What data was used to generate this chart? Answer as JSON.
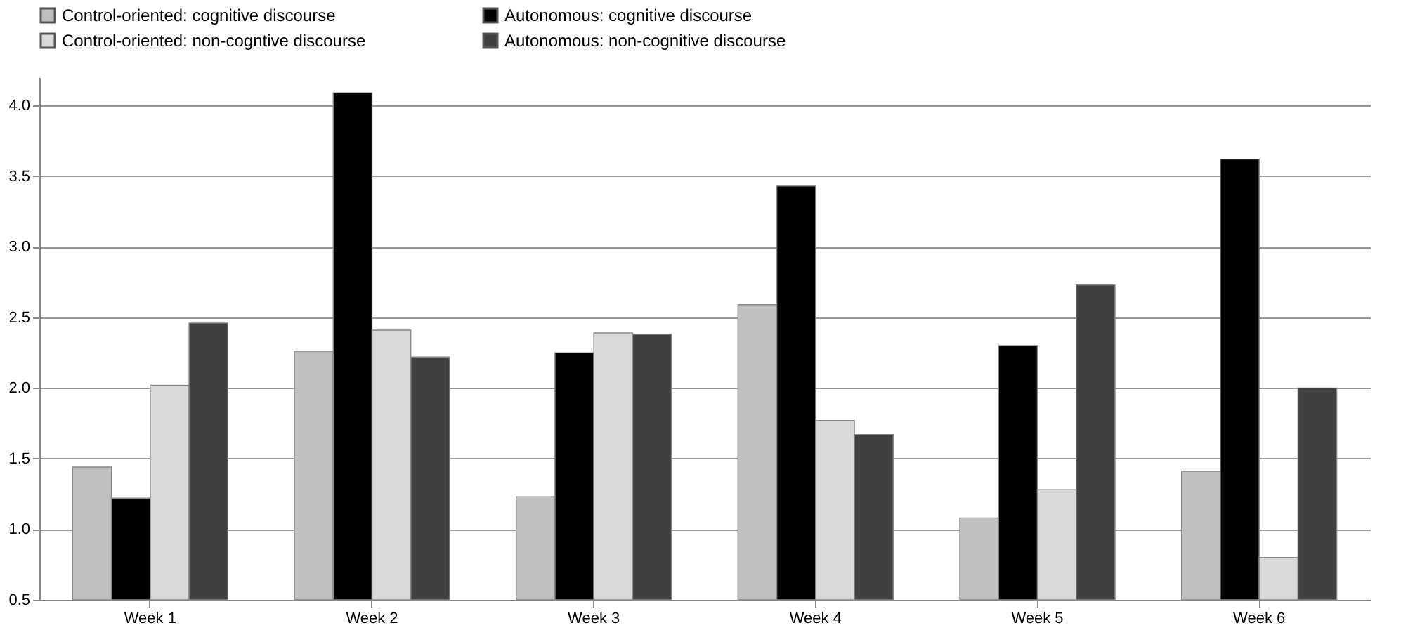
{
  "chart_data": {
    "type": "bar",
    "categories": [
      "Week 1",
      "Week 2",
      "Week 3",
      "Week 4",
      "Week 5",
      "Week 6"
    ],
    "series": [
      {
        "name": "Control-oriented: cognitive discourse",
        "color": "#bfbfbf",
        "values": [
          1.44,
          2.26,
          1.23,
          2.59,
          1.08,
          1.41
        ]
      },
      {
        "name": "Autonomous: cognitive discourse",
        "color": "#000000",
        "values": [
          1.22,
          4.09,
          2.25,
          3.43,
          2.3,
          3.62
        ]
      },
      {
        "name": "Control-oriented: non-cogntive discourse",
        "color": "#d9d9d9",
        "values": [
          2.02,
          2.41,
          2.39,
          1.77,
          1.28,
          0.8
        ]
      },
      {
        "name": "Autonomous: non-cognitive discourse",
        "color": "#404040",
        "values": [
          2.46,
          2.22,
          2.38,
          1.67,
          2.73,
          2.0
        ]
      }
    ],
    "ylim": [
      0.5,
      4.2
    ],
    "yticks": [
      {
        "value": 0.5,
        "label": "0.5"
      },
      {
        "value": 1,
        "label": "1.0"
      },
      {
        "value": 1.5,
        "label": "1.5"
      },
      {
        "value": 2,
        "label": "2.0"
      },
      {
        "value": 2.5,
        "label": "2.5"
      },
      {
        "value": 3,
        "label": "3.0"
      },
      {
        "value": 3.5,
        "label": "3.5"
      },
      {
        "value": 4,
        "label": "4.0"
      }
    ],
    "grid": "y",
    "legend": "top"
  }
}
